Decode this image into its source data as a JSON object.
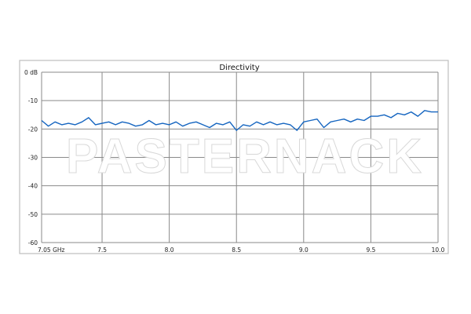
{
  "chart_data": {
    "type": "line",
    "title": "Directivity",
    "watermark": "PASTERNACK",
    "xlim": [
      7.05,
      10.0
    ],
    "ylim": [
      -60,
      0
    ],
    "grid": true,
    "x_ticks": [
      {
        "value": 7.05,
        "label": "7.05 GHz"
      },
      {
        "value": 7.5,
        "label": "7.5"
      },
      {
        "value": 8.0,
        "label": "8.0"
      },
      {
        "value": 8.5,
        "label": "8.5"
      },
      {
        "value": 9.0,
        "label": "9.0"
      },
      {
        "value": 9.5,
        "label": "9.5"
      },
      {
        "value": 10.0,
        "label": "10.0"
      }
    ],
    "y_ticks": [
      {
        "value": 0,
        "label": "0 dB"
      },
      {
        "value": -10,
        "label": "-10"
      },
      {
        "value": -20,
        "label": "-20"
      },
      {
        "value": -30,
        "label": "-30"
      },
      {
        "value": -40,
        "label": "-40"
      },
      {
        "value": -50,
        "label": "-50"
      },
      {
        "value": -60,
        "label": "-60"
      }
    ],
    "line_color": "#1565c0",
    "x": [
      7.05,
      7.1,
      7.15,
      7.2,
      7.25,
      7.3,
      7.35,
      7.4,
      7.45,
      7.5,
      7.55,
      7.6,
      7.65,
      7.7,
      7.75,
      7.8,
      7.85,
      7.9,
      7.95,
      8.0,
      8.05,
      8.1,
      8.15,
      8.2,
      8.25,
      8.3,
      8.35,
      8.4,
      8.45,
      8.5,
      8.55,
      8.6,
      8.65,
      8.7,
      8.75,
      8.8,
      8.85,
      8.9,
      8.95,
      9.0,
      9.05,
      9.1,
      9.15,
      9.2,
      9.25,
      9.3,
      9.35,
      9.4,
      9.45,
      9.5,
      9.55,
      9.6,
      9.65,
      9.7,
      9.75,
      9.8,
      9.85,
      9.9,
      9.95,
      10.0
    ],
    "y": [
      -17,
      -19,
      -17.5,
      -18.5,
      -18,
      -18.5,
      -17.5,
      -16,
      -18.5,
      -18,
      -17.5,
      -18.5,
      -17.5,
      -18,
      -19,
      -18.5,
      -17,
      -18.5,
      -18,
      -18.5,
      -17.5,
      -19,
      -18,
      -17.5,
      -18.5,
      -19.5,
      -18,
      -18.5,
      -17.5,
      -20.5,
      -18.5,
      -19,
      -17.5,
      -18.5,
      -17.5,
      -18.5,
      -18,
      -18.5,
      -20.5,
      -17.5,
      -17,
      -16.5,
      -19.5,
      -17.5,
      -17,
      -16.5,
      -17.5,
      -16.5,
      -17,
      -15.5,
      -15.5,
      -15,
      -16,
      -14.5,
      -15,
      -14,
      -15.5,
      -13.5,
      -14,
      -14
    ]
  }
}
